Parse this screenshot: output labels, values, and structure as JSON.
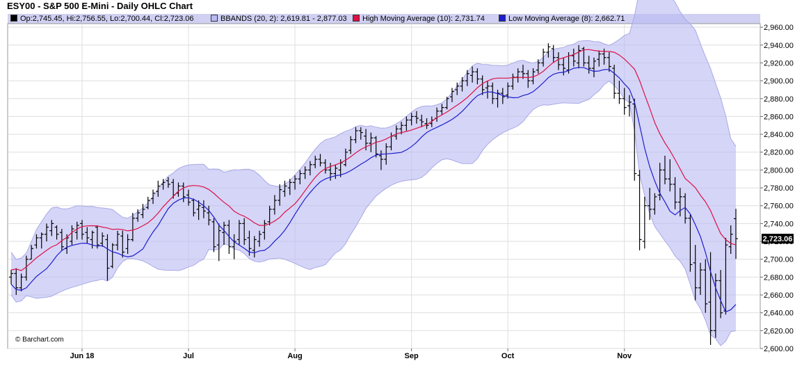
{
  "header": {
    "title": "ESY00 - S&P 500 E-Mini - Daily OHLC Chart"
  },
  "legend": {
    "ohlc": "Op:2,745.45, Hi:2,756.55, Lo:2,700.44, Cl:2,723.06",
    "bbands": "BBANDS (20, 2): 2,619.81 - 2,877.03",
    "high_ma": "High Moving Average (10): 2,731.74",
    "low_ma": "Low Moving Average (8): 2,662.71"
  },
  "colors": {
    "ohlc": "#000000",
    "bbands_fill": "#b9b9f3",
    "bbands_line": "#a9a9e6",
    "high_ma": "#dd1144",
    "low_ma": "#1d1dcc",
    "grid": "#dedede",
    "last_price_bg": "#000000"
  },
  "watermark": "© Barchart.com",
  "chart_data": {
    "type": "line",
    "y_ticks": [
      "2,600.00",
      "2,620.00",
      "2,640.00",
      "2,660.00",
      "2,680.00",
      "2,700.00",
      "2,720.00",
      "2,740.00",
      "2,760.00",
      "2,780.00",
      "2,800.00",
      "2,820.00",
      "2,840.00",
      "2,860.00",
      "2,880.00",
      "2,900.00",
      "2,920.00",
      "2,940.00",
      "2,960.00"
    ],
    "ylim": [
      2600,
      2964
    ],
    "x_tick_labels": [
      "Jun 18",
      "Jul",
      "Aug",
      "Sep",
      "Oct",
      "Nov"
    ],
    "x_tick_dates": [
      "2018-06-01",
      "2018-07-02",
      "2018-08-01",
      "2018-09-04",
      "2018-10-01",
      "2018-11-01"
    ],
    "last_price_label": "2,723.06",
    "grid": true,
    "ohlc": [
      [
        "2018-05-11",
        2680,
        2688,
        2672,
        2684
      ],
      [
        "2018-05-14",
        2684,
        2690,
        2660,
        2668
      ],
      [
        "2018-05-15",
        2668,
        2684,
        2664,
        2680
      ],
      [
        "2018-05-16",
        2680,
        2704,
        2676,
        2700
      ],
      [
        "2018-05-17",
        2700,
        2716,
        2700,
        2712
      ],
      [
        "2018-05-18",
        2716,
        2728,
        2712,
        2724
      ],
      [
        "2018-05-21",
        2724,
        2730,
        2712,
        2728
      ],
      [
        "2018-05-22",
        2728,
        2740,
        2720,
        2736
      ],
      [
        "2018-05-23",
        2732,
        2744,
        2726,
        2740
      ],
      [
        "2018-05-24",
        2736,
        2738,
        2722,
        2728
      ],
      [
        "2018-05-25",
        2730,
        2734,
        2710,
        2714
      ],
      [
        "2018-05-29",
        2712,
        2728,
        2706,
        2724
      ],
      [
        "2018-05-30",
        2720,
        2738,
        2716,
        2734
      ],
      [
        "2018-05-31",
        2730,
        2742,
        2722,
        2738
      ],
      [
        "2018-06-01",
        2740,
        2744,
        2722,
        2728
      ],
      [
        "2018-06-04",
        2730,
        2736,
        2718,
        2724
      ],
      [
        "2018-06-05",
        2722,
        2732,
        2712,
        2730
      ],
      [
        "2018-06-06",
        2736,
        2738,
        2712,
        2716
      ],
      [
        "2018-06-07",
        2718,
        2730,
        2714,
        2726
      ],
      [
        "2018-06-08",
        2722,
        2728,
        2676,
        2690
      ],
      [
        "2018-06-11",
        2692,
        2718,
        2690,
        2716
      ],
      [
        "2018-06-12",
        2716,
        2732,
        2710,
        2728
      ],
      [
        "2018-06-13",
        2726,
        2732,
        2702,
        2708
      ],
      [
        "2018-06-14",
        2712,
        2728,
        2706,
        2722
      ],
      [
        "2018-06-15",
        2722,
        2752,
        2720,
        2746
      ],
      [
        "2018-06-18",
        2746,
        2756,
        2742,
        2752
      ],
      [
        "2018-06-19",
        2750,
        2762,
        2746,
        2756
      ],
      [
        "2018-06-20",
        2758,
        2770,
        2756,
        2766
      ],
      [
        "2018-06-21",
        2768,
        2778,
        2762,
        2774
      ],
      [
        "2018-06-22",
        2776,
        2788,
        2770,
        2782
      ],
      [
        "2018-06-25",
        2784,
        2790,
        2778,
        2786
      ],
      [
        "2018-06-26",
        2788,
        2792,
        2780,
        2784
      ],
      [
        "2018-06-27",
        2786,
        2790,
        2768,
        2772
      ],
      [
        "2018-06-28",
        2774,
        2786,
        2770,
        2782
      ],
      [
        "2018-06-29",
        2782,
        2786,
        2764,
        2770
      ],
      [
        "2018-07-02",
        2772,
        2778,
        2760,
        2764
      ],
      [
        "2018-07-03",
        2766,
        2768,
        2748,
        2752
      ],
      [
        "2018-07-05",
        2756,
        2766,
        2744,
        2760
      ],
      [
        "2018-07-06",
        2758,
        2766,
        2746,
        2754
      ],
      [
        "2018-07-09",
        2752,
        2760,
        2738,
        2744
      ],
      [
        "2018-07-10",
        2742,
        2746,
        2708,
        2714
      ],
      [
        "2018-07-11",
        2716,
        2740,
        2698,
        2732
      ],
      [
        "2018-07-12",
        2730,
        2742,
        2716,
        2738
      ],
      [
        "2018-07-13",
        2738,
        2744,
        2706,
        2714
      ],
      [
        "2018-07-16",
        2714,
        2728,
        2700,
        2720
      ],
      [
        "2018-07-17",
        2722,
        2744,
        2716,
        2740
      ],
      [
        "2018-07-18",
        2740,
        2746,
        2716,
        2722
      ],
      [
        "2018-07-19",
        2724,
        2732,
        2704,
        2712
      ],
      [
        "2018-07-20",
        2710,
        2726,
        2702,
        2722
      ],
      [
        "2018-07-23",
        2720,
        2732,
        2714,
        2728
      ],
      [
        "2018-07-24",
        2730,
        2744,
        2722,
        2740
      ],
      [
        "2018-07-25",
        2742,
        2760,
        2738,
        2756
      ],
      [
        "2018-07-26",
        2756,
        2772,
        2750,
        2766
      ],
      [
        "2018-07-27",
        2766,
        2784,
        2760,
        2778
      ],
      [
        "2018-07-30",
        2776,
        2788,
        2770,
        2782
      ],
      [
        "2018-07-31",
        2780,
        2790,
        2772,
        2786
      ],
      [
        "2018-08-01",
        2786,
        2794,
        2778,
        2790
      ],
      [
        "2018-08-02",
        2790,
        2800,
        2784,
        2796
      ],
      [
        "2018-08-03",
        2796,
        2804,
        2790,
        2800
      ],
      [
        "2018-08-06",
        2800,
        2810,
        2794,
        2806
      ],
      [
        "2018-08-07",
        2806,
        2816,
        2802,
        2812
      ],
      [
        "2018-08-08",
        2812,
        2818,
        2804,
        2808
      ],
      [
        "2018-08-09",
        2808,
        2812,
        2796,
        2800
      ],
      [
        "2018-08-10",
        2800,
        2808,
        2788,
        2796
      ],
      [
        "2018-08-13",
        2796,
        2806,
        2790,
        2802
      ],
      [
        "2018-08-14",
        2800,
        2812,
        2792,
        2808
      ],
      [
        "2018-08-15",
        2806,
        2824,
        2804,
        2820
      ],
      [
        "2018-08-16",
        2822,
        2838,
        2818,
        2834
      ],
      [
        "2018-08-17",
        2834,
        2848,
        2830,
        2844
      ],
      [
        "2018-08-20",
        2844,
        2848,
        2834,
        2842
      ],
      [
        "2018-08-21",
        2838,
        2846,
        2822,
        2830
      ],
      [
        "2018-08-22",
        2830,
        2842,
        2820,
        2836
      ],
      [
        "2018-08-23",
        2836,
        2838,
        2814,
        2818
      ],
      [
        "2018-08-24",
        2816,
        2822,
        2800,
        2812
      ],
      [
        "2018-08-27",
        2812,
        2830,
        2806,
        2826
      ],
      [
        "2018-08-28",
        2826,
        2842,
        2822,
        2838
      ],
      [
        "2018-08-29",
        2838,
        2850,
        2834,
        2846
      ],
      [
        "2018-08-30",
        2846,
        2854,
        2840,
        2850
      ],
      [
        "2018-08-31",
        2850,
        2860,
        2844,
        2856
      ],
      [
        "2018-09-04",
        2856,
        2864,
        2850,
        2860
      ],
      [
        "2018-09-05",
        2860,
        2866,
        2852,
        2858
      ],
      [
        "2018-09-06",
        2856,
        2862,
        2848,
        2854
      ],
      [
        "2018-09-07",
        2852,
        2858,
        2846,
        2850
      ],
      [
        "2018-09-10",
        2852,
        2860,
        2848,
        2856
      ],
      [
        "2018-09-11",
        2858,
        2870,
        2854,
        2866
      ],
      [
        "2018-09-12",
        2866,
        2874,
        2862,
        2870
      ],
      [
        "2018-09-13",
        2870,
        2882,
        2868,
        2880
      ],
      [
        "2018-09-14",
        2882,
        2892,
        2876,
        2888
      ],
      [
        "2018-09-17",
        2890,
        2898,
        2884,
        2894
      ],
      [
        "2018-09-18",
        2894,
        2904,
        2888,
        2900
      ],
      [
        "2018-09-19",
        2900,
        2912,
        2894,
        2908
      ],
      [
        "2018-09-20",
        2906,
        2916,
        2898,
        2910
      ],
      [
        "2018-09-21",
        2910,
        2914,
        2896,
        2902
      ],
      [
        "2018-09-24",
        2902,
        2906,
        2884,
        2890
      ],
      [
        "2018-09-25",
        2892,
        2900,
        2880,
        2894
      ],
      [
        "2018-09-26",
        2894,
        2898,
        2874,
        2880
      ],
      [
        "2018-09-27",
        2880,
        2890,
        2870,
        2886
      ],
      [
        "2018-09-28",
        2886,
        2892,
        2874,
        2882
      ],
      [
        "2018-10-01",
        2884,
        2898,
        2880,
        2894
      ],
      [
        "2018-10-02",
        2894,
        2908,
        2890,
        2904
      ],
      [
        "2018-10-03",
        2904,
        2914,
        2898,
        2910
      ],
      [
        "2018-10-04",
        2910,
        2918,
        2902,
        2908
      ],
      [
        "2018-10-05",
        2908,
        2912,
        2892,
        2900
      ],
      [
        "2018-10-08",
        2900,
        2914,
        2896,
        2910
      ],
      [
        "2018-10-09",
        2912,
        2924,
        2908,
        2920
      ],
      [
        "2018-10-10",
        2920,
        2936,
        2916,
        2932
      ],
      [
        "2018-10-11",
        2932,
        2942,
        2926,
        2938
      ],
      [
        "2018-10-12",
        2936,
        2940,
        2920,
        2926
      ],
      [
        "2018-10-15",
        2926,
        2932,
        2912,
        2918
      ],
      [
        "2018-10-16",
        2918,
        2926,
        2906,
        2914
      ],
      [
        "2018-10-17",
        2912,
        2932,
        2908,
        2928
      ],
      [
        "2018-10-18",
        2928,
        2936,
        2916,
        2922
      ],
      [
        "2018-10-19",
        2920,
        2940,
        2914,
        2934
      ],
      [
        "2018-10-22",
        2936,
        2938,
        2916,
        2920
      ],
      [
        "2018-10-23",
        2920,
        2928,
        2908,
        2914
      ],
      [
        "2018-10-24",
        2914,
        2926,
        2904,
        2922
      ],
      [
        "2018-10-25",
        2924,
        2934,
        2916,
        2930
      ],
      [
        "2018-10-26",
        2930,
        2936,
        2918,
        2926
      ],
      [
        "2018-10-29",
        2926,
        2932,
        2910,
        2916
      ],
      [
        "2018-10-30",
        2914,
        2918,
        2880,
        2886
      ],
      [
        "2018-10-31",
        2886,
        2900,
        2874,
        2880
      ],
      [
        "2018-11-01",
        2880,
        2892,
        2862,
        2870
      ],
      [
        "2018-11-02",
        2872,
        2884,
        2860,
        2876
      ],
      [
        "2018-11-05",
        2874,
        2880,
        2788,
        2796
      ],
      [
        "2018-11-06",
        2794,
        2800,
        2710,
        2722
      ],
      [
        "2018-11-07",
        2720,
        2770,
        2712,
        2760
      ],
      [
        "2018-11-08",
        2760,
        2780,
        2744,
        2756
      ],
      [
        "2018-11-09",
        2756,
        2774,
        2750,
        2770
      ],
      [
        "2018-11-12",
        2772,
        2808,
        2766,
        2800
      ],
      [
        "2018-11-13",
        2800,
        2816,
        2784,
        2790
      ],
      [
        "2018-11-14",
        2790,
        2812,
        2776,
        2784
      ],
      [
        "2018-11-15",
        2784,
        2792,
        2756,
        2764
      ],
      [
        "2018-11-16",
        2764,
        2780,
        2748,
        2770
      ],
      [
        "2018-11-19",
        2770,
        2774,
        2740,
        2746
      ],
      [
        "2018-11-20",
        2746,
        2750,
        2686,
        2694
      ],
      [
        "2018-11-21",
        2696,
        2716,
        2654,
        2668
      ],
      [
        "2018-11-23",
        2668,
        2696,
        2660,
        2688
      ],
      [
        "2018-11-26",
        2688,
        2700,
        2640,
        2650
      ],
      [
        "2018-11-27",
        2652,
        2708,
        2604,
        2620
      ],
      [
        "2018-11-28",
        2620,
        2684,
        2612,
        2676
      ],
      [
        "2018-11-29",
        2676,
        2688,
        2634,
        2640
      ],
      [
        "2018-11-30",
        2642,
        2724,
        2638,
        2716
      ],
      [
        "2018-12-03",
        2714,
        2738,
        2706,
        2728
      ],
      [
        "2018-12-04",
        2745.45,
        2756.55,
        2700.44,
        2723.06
      ]
    ]
  }
}
